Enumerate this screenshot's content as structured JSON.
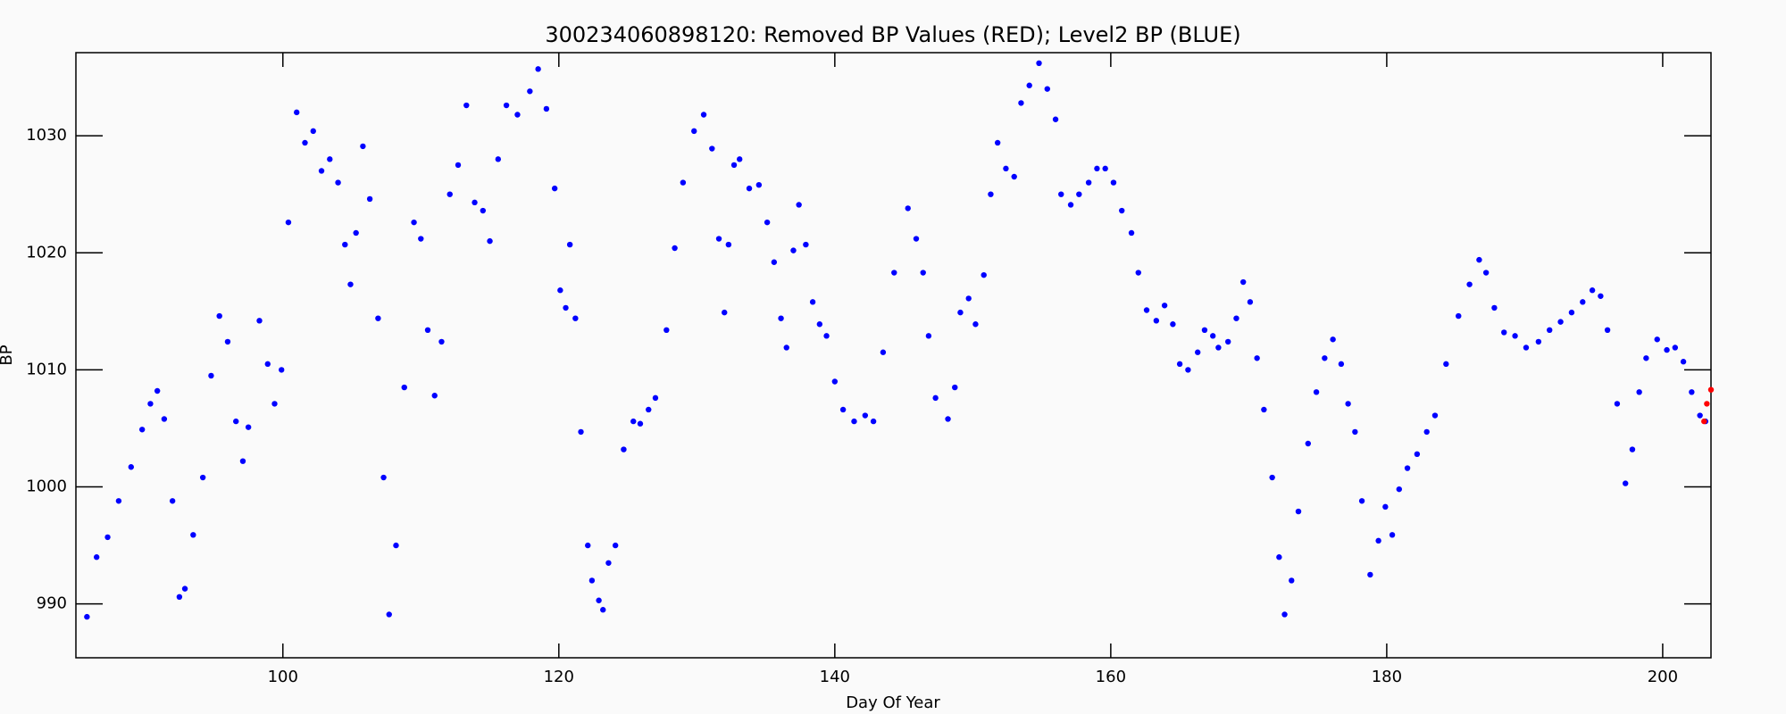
{
  "chart_data": {
    "type": "scatter",
    "title": "300234060898120: Removed BP Values (RED); Level2 BP (BLUE)",
    "xlabel": "Day Of Year",
    "ylabel": "BP",
    "xlim": [
      85,
      203.5
    ],
    "xticks": [
      100,
      120,
      140,
      160,
      180,
      200
    ],
    "ylim": [
      985.4,
      1037.1
    ],
    "yticks": [
      990,
      1000,
      1010,
      1020,
      1030
    ],
    "series": [
      {
        "color": "#0000ff",
        "x": [
          85.8,
          86.5,
          87.3,
          88.1,
          89.0,
          89.8,
          90.4,
          90.9,
          91.4,
          92.0,
          92.5,
          92.9,
          93.5,
          94.2,
          94.8,
          95.4,
          96.0,
          96.6,
          97.1,
          97.5,
          98.3,
          98.9,
          99.4,
          99.9,
          100.4,
          101.0,
          101.6,
          102.2,
          102.8,
          103.4,
          104.0,
          104.5,
          104.9,
          105.3,
          105.8,
          106.3,
          106.9,
          107.3,
          107.7,
          108.2,
          108.8,
          109.5,
          110.0,
          110.5,
          111.0,
          111.5,
          112.1,
          112.7,
          113.3,
          113.9,
          114.5,
          115.0,
          115.6,
          116.2,
          117.0,
          117.9,
          118.5,
          119.1,
          119.7,
          120.1,
          120.5,
          120.8,
          121.2,
          121.6,
          122.1,
          122.4,
          122.9,
          123.2,
          123.6,
          124.1,
          124.7,
          125.4,
          125.9,
          126.5,
          127.0,
          127.8,
          128.4,
          129.0,
          129.8,
          130.5,
          131.1,
          131.6,
          132.0,
          132.3,
          132.7,
          133.1,
          133.8,
          134.5,
          135.1,
          135.6,
          136.1,
          136.5,
          137.0,
          137.4,
          137.9,
          138.4,
          138.9,
          139.4,
          140.0,
          140.6,
          141.4,
          142.2,
          142.8,
          143.5,
          144.3,
          145.3,
          145.9,
          146.4,
          146.8,
          147.3,
          148.2,
          148.7,
          149.1,
          149.7,
          150.2,
          150.8,
          151.3,
          151.8,
          152.4,
          153.0,
          153.5,
          154.1,
          154.8,
          155.4,
          156.0,
          156.4,
          157.1,
          157.7,
          158.4,
          159.0,
          159.6,
          160.2,
          160.8,
          161.5,
          162.0,
          162.6,
          163.3,
          163.9,
          164.5,
          165.0,
          165.6,
          166.3,
          166.8,
          167.4,
          167.8,
          168.5,
          169.1,
          169.6,
          170.1,
          170.6,
          171.1,
          171.7,
          172.2,
          172.6,
          173.1,
          173.6,
          174.3,
          174.9,
          175.5,
          176.1,
          176.7,
          177.2,
          177.7,
          178.2,
          178.8,
          179.4,
          179.9,
          180.4,
          180.9,
          181.5,
          182.2,
          182.9,
          183.5,
          184.3,
          185.2,
          186.0,
          186.7,
          187.2,
          187.8,
          188.5,
          189.3,
          190.1,
          191.0,
          191.8,
          192.6,
          193.4,
          194.2,
          194.9,
          195.5,
          196.0,
          196.7,
          197.3,
          197.8,
          198.3,
          198.8,
          199.6,
          200.3,
          200.9,
          201.5,
          202.1,
          202.7,
          203.1
        ],
        "values": [
          988.9,
          994,
          995.7,
          998.8,
          1001.7,
          1004.9,
          1007.1,
          1008.2,
          1005.8,
          998.8,
          990.6,
          991.3,
          995.9,
          1000.8,
          1009.5,
          1014.6,
          1012.4,
          1005.6,
          1002.2,
          1005.1,
          1014.2,
          1010.5,
          1007.1,
          1010.0,
          1022.6,
          1032.0,
          1029.4,
          1030.4,
          1027.0,
          1028.0,
          1026.0,
          1020.7,
          1017.3,
          1021.7,
          1029.1,
          1024.6,
          1014.4,
          1000.8,
          989.1,
          995.0,
          1008.5,
          1022.6,
          1021.2,
          1013.4,
          1007.8,
          1012.4,
          1025.0,
          1027.5,
          1032.6,
          1024.3,
          1023.6,
          1021.0,
          1028.0,
          1032.6,
          1031.8,
          1033.8,
          1035.7,
          1032.3,
          1025.5,
          1016.8,
          1015.3,
          1020.7,
          1014.4,
          1004.7,
          995.0,
          992.0,
          990.3,
          989.5,
          993.5,
          995.0,
          1003.2,
          1005.6,
          1005.4,
          1006.6,
          1007.6,
          1013.4,
          1020.4,
          1026.0,
          1030.4,
          1031.8,
          1028.9,
          1021.2,
          1014.9,
          1020.7,
          1027.5,
          1028.0,
          1025.5,
          1025.8,
          1022.6,
          1019.2,
          1014.4,
          1011.9,
          1020.2,
          1024.1,
          1020.7,
          1015.8,
          1013.9,
          1012.9,
          1009.0,
          1006.6,
          1005.6,
          1006.1,
          1005.6,
          1011.5,
          1018.3,
          1023.8,
          1021.2,
          1018.3,
          1012.9,
          1007.6,
          1005.8,
          1008.5,
          1014.9,
          1016.1,
          1013.9,
          1018.1,
          1025.0,
          1029.4,
          1027.2,
          1026.5,
          1032.8,
          1034.3,
          1036.2,
          1034.0,
          1031.4,
          1025.0,
          1024.1,
          1025.0,
          1026.0,
          1027.2,
          1027.2,
          1026.0,
          1023.6,
          1021.7,
          1018.3,
          1015.1,
          1014.2,
          1015.5,
          1013.9,
          1010.5,
          1010.0,
          1011.5,
          1013.4,
          1012.9,
          1011.9,
          1012.4,
          1014.4,
          1017.5,
          1015.8,
          1011.0,
          1006.6,
          1000.8,
          994.0,
          989.1,
          992.0,
          997.9,
          1003.7,
          1008.1,
          1011.0,
          1012.6,
          1010.5,
          1007.1,
          1004.7,
          998.8,
          992.5,
          995.4,
          998.3,
          995.9,
          999.8,
          1001.6,
          1002.8,
          1004.7,
          1006.1,
          1010.5,
          1014.6,
          1017.3,
          1019.4,
          1018.3,
          1015.3,
          1013.2,
          1012.9,
          1011.9,
          1012.4,
          1013.4,
          1014.1,
          1014.9,
          1015.8,
          1016.8,
          1016.3,
          1013.4,
          1007.1,
          1000.3,
          1003.2,
          1008.1,
          1011.0,
          1012.6,
          1011.7,
          1011.9,
          1010.7,
          1008.1,
          1006.1,
          1005.6
        ]
      },
      {
        "color": "#ff0000",
        "x": [
          203.0,
          203.2,
          203.5
        ],
        "values": [
          1005.6,
          1007.1,
          1008.3
        ]
      }
    ]
  }
}
